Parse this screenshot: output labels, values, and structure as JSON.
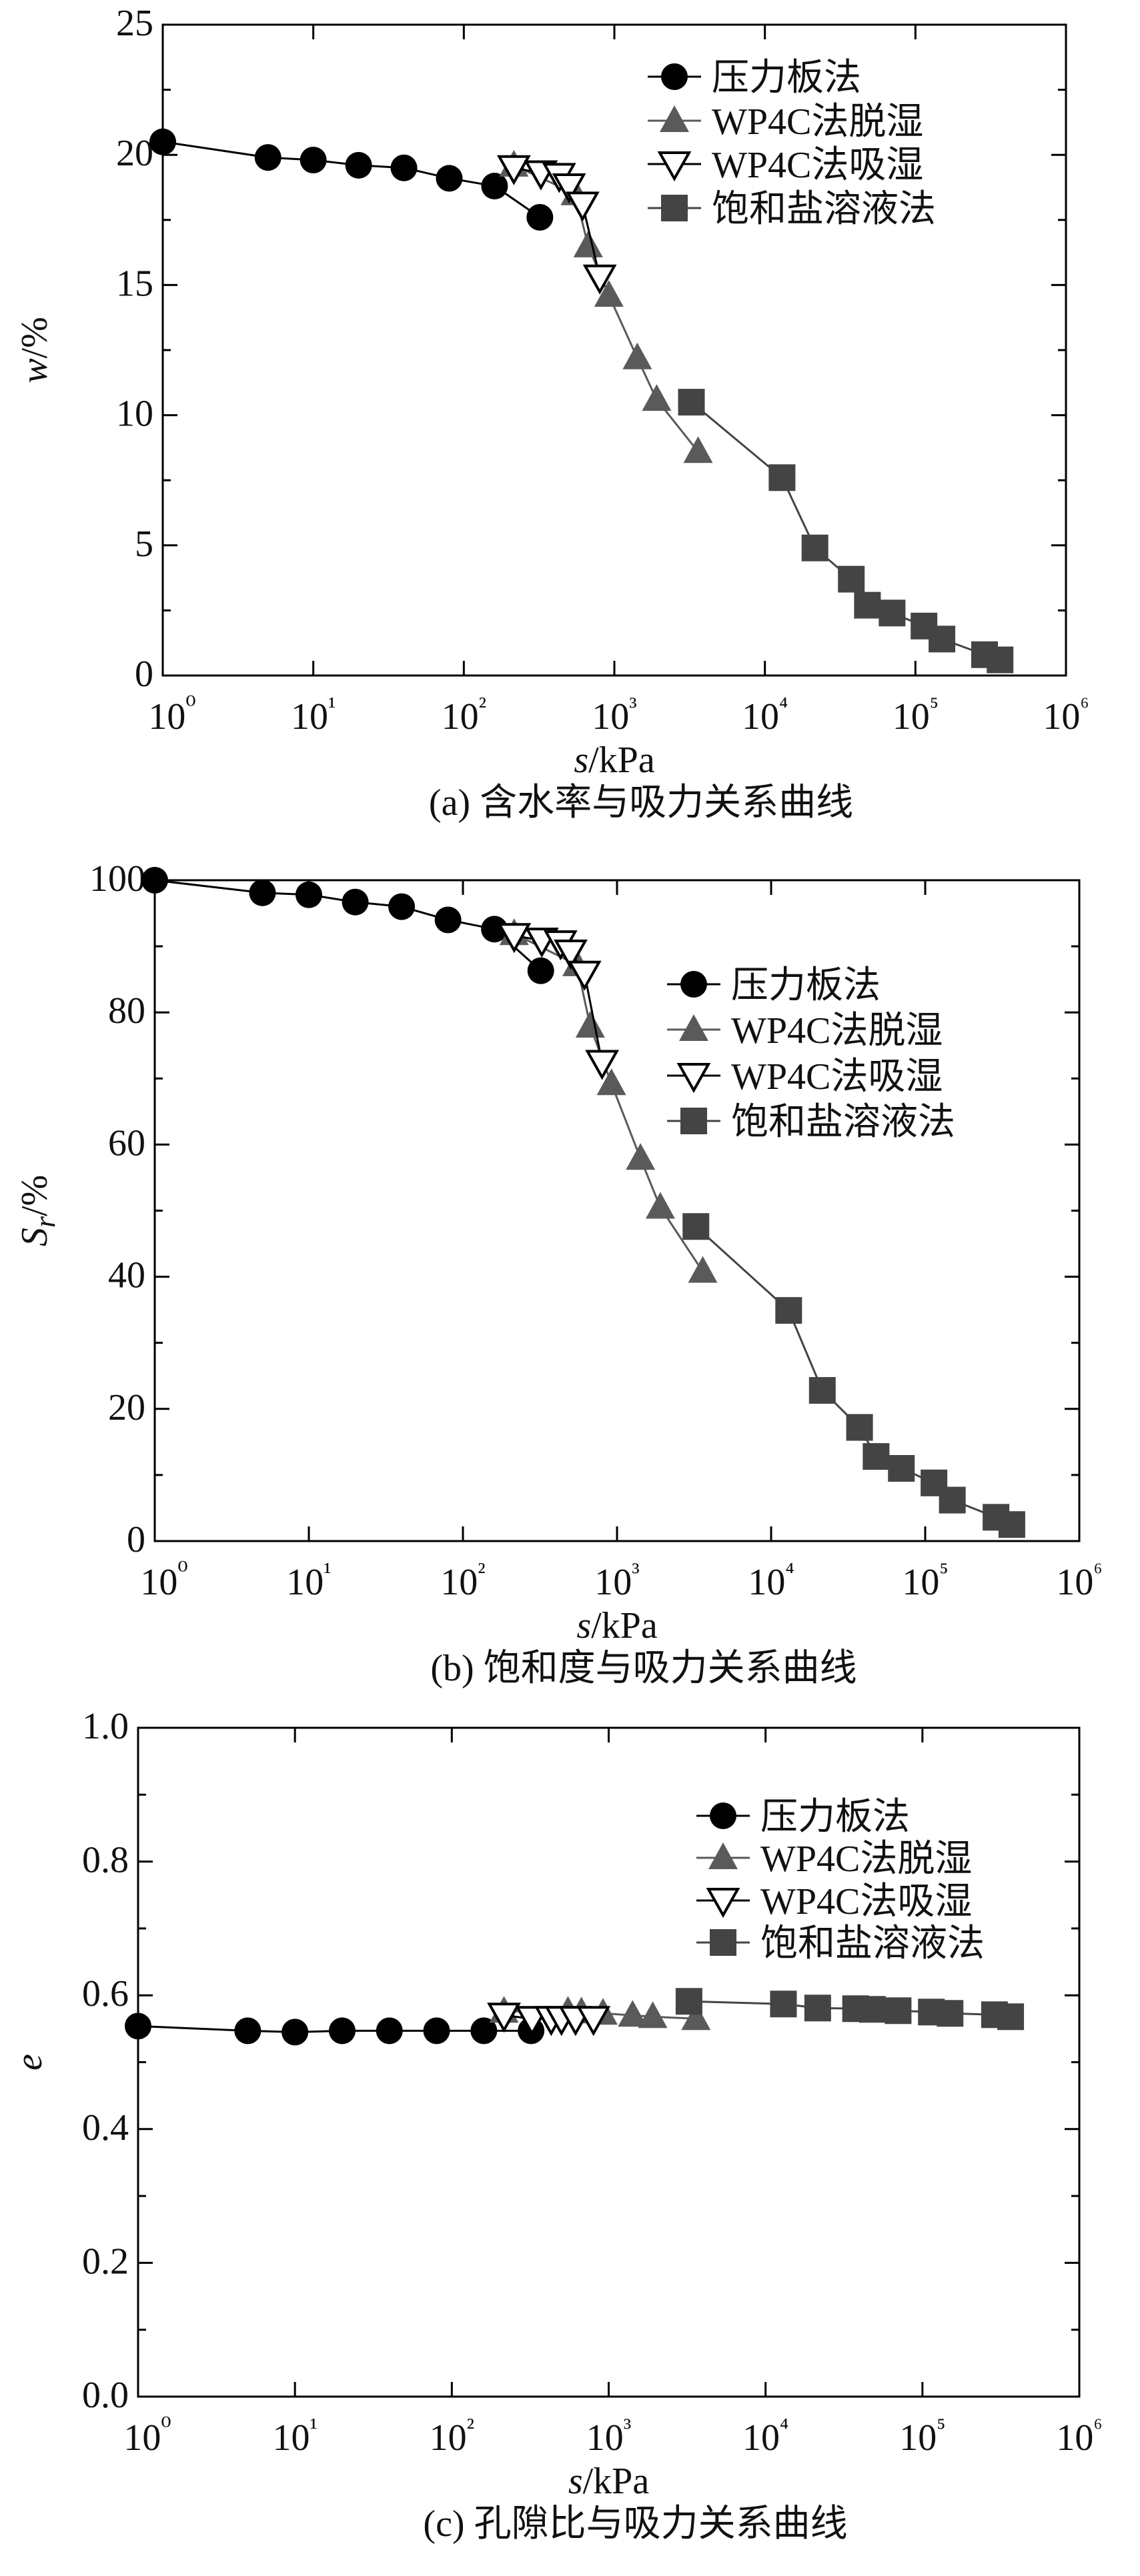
{
  "chart_data": [
    {
      "type": "line",
      "caption": "(a) 含水率与吸力关系曲线",
      "xlabel_var": "s",
      "xlabel_unit": "/kPa",
      "ylabel_var": "w",
      "ylabel_sub": "",
      "ylabel_unit": "/%",
      "xscale": "log",
      "xlim": [
        1,
        1000000
      ],
      "ylim": [
        0,
        25
      ],
      "yticks": [
        0,
        5,
        10,
        15,
        20,
        25
      ],
      "ytick_labels": [
        "0",
        "5",
        "10",
        "15",
        "20",
        "25"
      ],
      "xtick_labels": [
        "10⁰",
        "10¹",
        "10²",
        "10³",
        "10⁴",
        "10⁵",
        "10⁶"
      ],
      "grid": false,
      "legend": "top-right",
      "series": [
        {
          "name": "压力板法",
          "marker": "circle",
          "color": "#000000",
          "x": [
            1,
            5,
            10,
            20,
            40,
            80,
            160,
            320
          ],
          "y": [
            20.5,
            19.9,
            19.8,
            19.6,
            19.5,
            19.1,
            18.8,
            17.6
          ]
        },
        {
          "name": "WP4C法脱湿",
          "marker": "triangle-up",
          "color": "#5a5a5a",
          "x": [
            215,
            550,
            670,
            920,
            1420,
            1910,
            3600
          ],
          "y": [
            19.6,
            18.5,
            16.5,
            14.6,
            12.2,
            10.6,
            8.6
          ]
        },
        {
          "name": "WP4C法吸湿",
          "marker": "triangle-down-open",
          "color": "#000000",
          "x": [
            215,
            325,
            430,
            500,
            615,
            800
          ],
          "y": [
            19.5,
            19.3,
            19.2,
            18.8,
            18.1,
            15.3
          ]
        },
        {
          "name": "饱和盐溶液法",
          "marker": "square",
          "color": "#444444",
          "x": [
            3250,
            13000,
            21500,
            37500,
            48000,
            70000,
            114000,
            150000,
            288000,
            365000
          ],
          "y": [
            10.5,
            7.6,
            4.9,
            3.7,
            2.7,
            2.4,
            1.9,
            1.4,
            0.8,
            0.6
          ]
        }
      ]
    },
    {
      "type": "line",
      "caption": "(b) 饱和度与吸力关系曲线",
      "xlabel_var": "s",
      "xlabel_unit": "/kPa",
      "ylabel_var": "S",
      "ylabel_sub": "r",
      "ylabel_unit": "/%",
      "xscale": "log",
      "xlim": [
        1,
        1000000
      ],
      "ylim": [
        0,
        100
      ],
      "yticks": [
        0,
        20,
        40,
        60,
        80,
        100
      ],
      "ytick_labels": [
        "0",
        "20",
        "40",
        "60",
        "80",
        "100"
      ],
      "xtick_labels": [
        "10⁰",
        "10¹",
        "10²",
        "10³",
        "10⁴",
        "10⁵",
        "10⁶"
      ],
      "grid": false,
      "legend": "top-right",
      "series": [
        {
          "name": "压力板法",
          "marker": "circle",
          "color": "#000000",
          "x": [
            1,
            5,
            10,
            20,
            40,
            80,
            160,
            320
          ],
          "y": [
            100,
            98.1,
            97.8,
            96.7,
            96.0,
            94.0,
            92.6,
            86.3
          ]
        },
        {
          "name": "WP4C法脱湿",
          "marker": "triangle-up",
          "color": "#5a5a5a",
          "x": [
            215,
            550,
            670,
            920,
            1420,
            1910,
            3600
          ],
          "y": [
            91.9,
            87.2,
            77.9,
            69.2,
            57.9,
            50.5,
            40.8
          ]
        },
        {
          "name": "WP4C法吸湿",
          "marker": "triangle-down-open",
          "color": "#000000",
          "x": [
            215,
            325,
            430,
            500,
            615,
            800
          ],
          "y": [
            91.6,
            90.9,
            90.5,
            89.1,
            85.9,
            72.4
          ]
        },
        {
          "name": "饱和盐溶液法",
          "marker": "square",
          "color": "#444444",
          "x": [
            3250,
            13000,
            21500,
            37500,
            48000,
            70000,
            114000,
            150000,
            288000,
            365000
          ],
          "y": [
            47.6,
            34.9,
            22.8,
            17.2,
            12.8,
            11.0,
            8.8,
            6.2,
            3.6,
            2.5
          ]
        }
      ]
    },
    {
      "type": "line",
      "caption": "(c) 孔隙比与吸力关系曲线",
      "xlabel_var": "s",
      "xlabel_unit": "/kPa",
      "ylabel_var": "e",
      "ylabel_sub": "",
      "ylabel_unit": "",
      "xscale": "log",
      "xlim": [
        1,
        1000000
      ],
      "ylim": [
        0,
        1.0
      ],
      "yticks": [
        0,
        0.2,
        0.4,
        0.6,
        0.8,
        1.0
      ],
      "ytick_labels": [
        "0.0",
        "0.2",
        "0.4",
        "0.6",
        "0.8",
        "1.0"
      ],
      "xtick_labels": [
        "10⁰",
        "10¹",
        "10²",
        "10³",
        "10⁴",
        "10⁵",
        "10⁶"
      ],
      "grid": false,
      "legend": "top-right",
      "series": [
        {
          "name": "压力板法",
          "marker": "circle",
          "color": "#000000",
          "x": [
            1,
            5,
            10,
            20,
            40,
            80,
            160,
            320
          ],
          "y": [
            0.554,
            0.547,
            0.545,
            0.547,
            0.547,
            0.547,
            0.547,
            0.547
          ]
        },
        {
          "name": "WP4C法脱湿",
          "marker": "triangle-up",
          "color": "#5a5a5a",
          "x": [
            215,
            550,
            670,
            920,
            1420,
            1910,
            3600
          ],
          "y": [
            0.576,
            0.576,
            0.575,
            0.573,
            0.57,
            0.568,
            0.565
          ]
        },
        {
          "name": "WP4C法吸湿",
          "marker": "triangle-down-open",
          "color": "#000000",
          "x": [
            215,
            325,
            430,
            500,
            615,
            800
          ],
          "y": [
            0.57,
            0.565,
            0.565,
            0.565,
            0.565,
            0.565
          ]
        },
        {
          "name": "饱和盐溶液法",
          "marker": "square",
          "color": "#444444",
          "x": [
            3250,
            13000,
            21500,
            37500,
            48000,
            70000,
            114000,
            150000,
            288000,
            365000
          ],
          "y": [
            0.591,
            0.587,
            0.581,
            0.58,
            0.579,
            0.577,
            0.575,
            0.573,
            0.571,
            0.568
          ]
        }
      ]
    }
  ]
}
